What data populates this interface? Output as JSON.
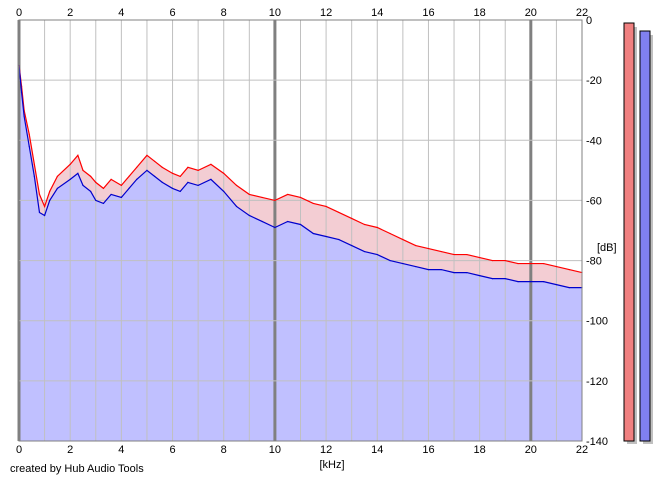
{
  "chart_data": {
    "type": "area",
    "title": "",
    "xlabel": "[kHz]",
    "ylabel": "[dB]",
    "xlim": [
      0,
      22
    ],
    "ylim": [
      -140,
      0
    ],
    "x_ticks": [
      0,
      2,
      4,
      6,
      8,
      10,
      12,
      14,
      16,
      18,
      20,
      22
    ],
    "y_ticks": [
      0,
      -20,
      -40,
      -60,
      -80,
      -100,
      -120,
      -140
    ],
    "grid": true,
    "series": [
      {
        "color": "#ff0000",
        "x": [
          0,
          0.1,
          0.2,
          0.4,
          0.6,
          0.8,
          1.0,
          1.2,
          1.5,
          2.0,
          2.3,
          2.5,
          2.8,
          3.0,
          3.3,
          3.6,
          4.0,
          4.3,
          4.6,
          5.0,
          5.3,
          5.6,
          6.0,
          6.3,
          6.6,
          7.0,
          7.5,
          8.0,
          8.5,
          9.0,
          9.5,
          10.0,
          10.5,
          11.0,
          11.5,
          12.0,
          12.5,
          13.0,
          13.5,
          14.0,
          14.5,
          15.0,
          15.5,
          16.0,
          16.5,
          17.0,
          17.5,
          18.0,
          18.5,
          19.0,
          19.5,
          20.0,
          20.5,
          21.0,
          21.5,
          22.0
        ],
        "values": [
          -15,
          -22,
          -30,
          -38,
          -48,
          -58,
          -62,
          -57,
          -52,
          -48,
          -45,
          -50,
          -52,
          -54,
          -56,
          -53,
          -55,
          -52,
          -49,
          -45,
          -47,
          -49,
          -51,
          -52,
          -49,
          -50,
          -48,
          -51,
          -55,
          -58,
          -59,
          -60,
          -58,
          -59,
          -61,
          -62,
          -64,
          -66,
          -68,
          -69,
          -71,
          -73,
          -75,
          -76,
          -77,
          -78,
          -78,
          -79,
          -80,
          -80,
          -81,
          -81,
          -81,
          -82,
          -83,
          -84
        ]
      },
      {
        "color": "#0000cc",
        "x": [
          0,
          0.1,
          0.2,
          0.4,
          0.6,
          0.8,
          1.0,
          1.2,
          1.5,
          2.0,
          2.3,
          2.5,
          2.8,
          3.0,
          3.3,
          3.6,
          4.0,
          4.3,
          4.6,
          5.0,
          5.3,
          5.6,
          6.0,
          6.3,
          6.6,
          7.0,
          7.5,
          8.0,
          8.5,
          9.0,
          9.5,
          10.0,
          10.5,
          11.0,
          11.5,
          12.0,
          12.5,
          13.0,
          13.5,
          14.0,
          14.5,
          15.0,
          15.5,
          16.0,
          16.5,
          17.0,
          17.5,
          18.0,
          18.5,
          19.0,
          19.5,
          20.0,
          20.5,
          21.0,
          21.5,
          22.0
        ],
        "values": [
          -15,
          -24,
          -32,
          -42,
          -52,
          -64,
          -65,
          -60,
          -56,
          -53,
          -51,
          -55,
          -57,
          -60,
          -61,
          -58,
          -59,
          -56,
          -53,
          -50,
          -52,
          -54,
          -56,
          -57,
          -54,
          -55,
          -53,
          -57,
          -62,
          -65,
          -67,
          -69,
          -67,
          -68,
          -71,
          -72,
          -73,
          -75,
          -77,
          -78,
          -80,
          -81,
          -82,
          -83,
          -83,
          -84,
          -84,
          -85,
          -86,
          -86,
          -87,
          -87,
          -87,
          -88,
          -89,
          -89
        ]
      }
    ],
    "level_meters": [
      {
        "color": "#f08080",
        "level_db": 0
      },
      {
        "color": "#8080f0",
        "level_db": 0
      }
    ]
  },
  "footer": {
    "credit": "created by Hub Audio Tools"
  },
  "colors": {
    "fill": "#c0c0ff",
    "grid_minor": "#c0c0c0",
    "grid_major": "#808080"
  }
}
